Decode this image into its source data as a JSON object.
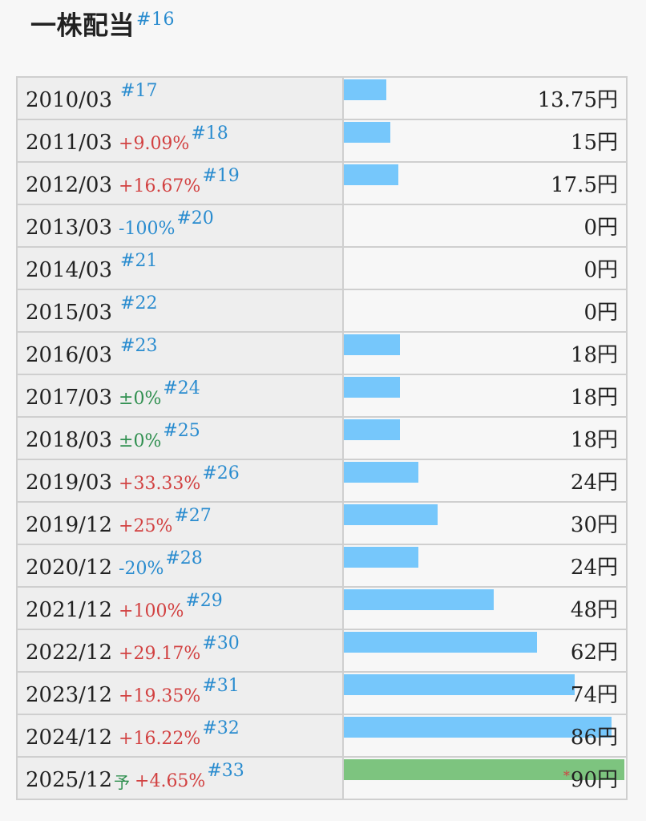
{
  "title": "一株配当",
  "title_ref": "#16",
  "colors": {
    "bar": "#76c7fb",
    "forecast_bar": "#7dc47f",
    "up": "#d24141",
    "down": "#2a8ccf",
    "flat": "#2f8f4f"
  },
  "max_value": 90,
  "rows": [
    {
      "date": "2010/03",
      "yo": "",
      "pct": "",
      "pct_class": "",
      "ref": "#17",
      "value": 13.75,
      "value_label": "13.75円",
      "star": "",
      "forecast": false
    },
    {
      "date": "2011/03",
      "yo": "",
      "pct": "+9.09%",
      "pct_class": "up",
      "ref": "#18",
      "value": 15,
      "value_label": "15円",
      "star": "",
      "forecast": false
    },
    {
      "date": "2012/03",
      "yo": "",
      "pct": "+16.67%",
      "pct_class": "up",
      "ref": "#19",
      "value": 17.5,
      "value_label": "17.5円",
      "star": "",
      "forecast": false
    },
    {
      "date": "2013/03",
      "yo": "",
      "pct": "-100%",
      "pct_class": "down",
      "ref": "#20",
      "value": 0,
      "value_label": "0円",
      "star": "",
      "forecast": false
    },
    {
      "date": "2014/03",
      "yo": "",
      "pct": "",
      "pct_class": "",
      "ref": "#21",
      "value": 0,
      "value_label": "0円",
      "star": "",
      "forecast": false
    },
    {
      "date": "2015/03",
      "yo": "",
      "pct": "",
      "pct_class": "",
      "ref": "#22",
      "value": 0,
      "value_label": "0円",
      "star": "",
      "forecast": false
    },
    {
      "date": "2016/03",
      "yo": "",
      "pct": "",
      "pct_class": "",
      "ref": "#23",
      "value": 18,
      "value_label": "18円",
      "star": "",
      "forecast": false
    },
    {
      "date": "2017/03",
      "yo": "",
      "pct": "±0%",
      "pct_class": "flat",
      "ref": "#24",
      "value": 18,
      "value_label": "18円",
      "star": "",
      "forecast": false
    },
    {
      "date": "2018/03",
      "yo": "",
      "pct": "±0%",
      "pct_class": "flat",
      "ref": "#25",
      "value": 18,
      "value_label": "18円",
      "star": "",
      "forecast": false
    },
    {
      "date": "2019/03",
      "yo": "",
      "pct": "+33.33%",
      "pct_class": "up",
      "ref": "#26",
      "value": 24,
      "value_label": "24円",
      "star": "",
      "forecast": false
    },
    {
      "date": "2019/12",
      "yo": "",
      "pct": "+25%",
      "pct_class": "up",
      "ref": "#27",
      "value": 30,
      "value_label": "30円",
      "star": "",
      "forecast": false
    },
    {
      "date": "2020/12",
      "yo": "",
      "pct": "-20%",
      "pct_class": "down",
      "ref": "#28",
      "value": 24,
      "value_label": "24円",
      "star": "",
      "forecast": false
    },
    {
      "date": "2021/12",
      "yo": "",
      "pct": "+100%",
      "pct_class": "up",
      "ref": "#29",
      "value": 48,
      "value_label": "48円",
      "star": "",
      "forecast": false
    },
    {
      "date": "2022/12",
      "yo": "",
      "pct": "+29.17%",
      "pct_class": "up",
      "ref": "#30",
      "value": 62,
      "value_label": "62円",
      "star": "",
      "forecast": false
    },
    {
      "date": "2023/12",
      "yo": "",
      "pct": "+19.35%",
      "pct_class": "up",
      "ref": "#31",
      "value": 74,
      "value_label": "74円",
      "star": "",
      "forecast": false
    },
    {
      "date": "2024/12",
      "yo": "",
      "pct": "+16.22%",
      "pct_class": "up",
      "ref": "#32",
      "value": 86,
      "value_label": "86円",
      "star": "",
      "forecast": false
    },
    {
      "date": "2025/12",
      "yo": "予",
      "pct": "+4.65%",
      "pct_class": "up",
      "ref": "#33",
      "value": 90,
      "value_label": "90円",
      "star": "*",
      "forecast": true
    }
  ]
}
